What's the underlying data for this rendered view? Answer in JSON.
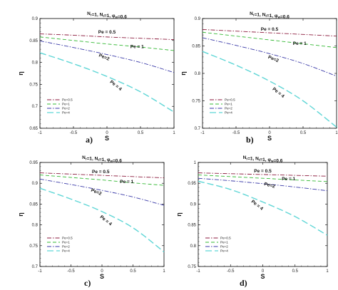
{
  "chart_data": [
    {
      "id": "a",
      "type": "line",
      "title": "N_r=1, N_t=1, φ_w=0.6",
      "xlabel": "S",
      "ylabel": "η",
      "xlim": [
        -1,
        1
      ],
      "ylim": [
        0.65,
        0.9
      ],
      "xticks": [
        "-1",
        "-0.5",
        "0",
        "0.5",
        "1"
      ],
      "yticks": [
        "0.65",
        "0.7",
        "0.75",
        "0.8",
        "0.85",
        "0.9"
      ],
      "legend_placement": "lower-left",
      "panel_label": "a)",
      "series": [
        {
          "name": "Pe=0.5",
          "color": "#8b1a3c",
          "dash": "dashdot",
          "x": [
            -1,
            -0.5,
            0,
            0.5,
            1
          ],
          "y": [
            0.865,
            0.862,
            0.858,
            0.855,
            0.852
          ]
        },
        {
          "name": "Pe=1",
          "color": "#33b833",
          "dash": "dash",
          "x": [
            -1,
            -0.5,
            0,
            0.5,
            1
          ],
          "y": [
            0.858,
            0.85,
            0.842,
            0.835,
            0.827
          ]
        },
        {
          "name": "Pe=2",
          "color": "#3a3aa8",
          "dash": "dashdot",
          "x": [
            -1,
            -0.5,
            0,
            0.5,
            1
          ],
          "y": [
            0.849,
            0.834,
            0.818,
            0.8,
            0.777
          ]
        },
        {
          "name": "Pe=4",
          "color": "#5fd6d6",
          "dash": "longdash",
          "x": [
            -1,
            -0.5,
            0,
            0.5,
            1
          ],
          "y": [
            0.822,
            0.797,
            0.768,
            0.733,
            0.687
          ]
        }
      ],
      "annotations": [
        {
          "text": "Pe = 0.5",
          "x": 0.0,
          "y": 0.866,
          "rotate": 0
        },
        {
          "text": "Pe = 1",
          "x": 0.45,
          "y": 0.833,
          "rotate": 0
        },
        {
          "text": "Pe=2",
          "x": -0.05,
          "y": 0.809,
          "rotate": 22
        },
        {
          "text": "Pe = 4",
          "x": 0.12,
          "y": 0.745,
          "rotate": 38
        }
      ]
    },
    {
      "id": "b",
      "type": "line",
      "title": "N_r=1, N_t=1, φ_w=0.6",
      "xlabel": "S",
      "ylabel": "η",
      "xlim": [
        -1,
        1
      ],
      "ylim": [
        0.7,
        0.9
      ],
      "xticks": [
        "-1",
        "-0.5",
        "0",
        "0.5",
        "1"
      ],
      "yticks": [
        "0.7",
        "0.75",
        "0.8",
        "0.85",
        "0.9"
      ],
      "legend_placement": "lower-left",
      "panel_label": "b)",
      "series": [
        {
          "name": "Pe=0.5",
          "color": "#8b1a3c",
          "dash": "dashdot",
          "x": [
            -1,
            -0.5,
            0,
            0.5,
            1
          ],
          "y": [
            0.88,
            0.877,
            0.874,
            0.871,
            0.868
          ]
        },
        {
          "name": "Pe=1",
          "color": "#33b833",
          "dash": "dash",
          "x": [
            -1,
            -0.5,
            0,
            0.5,
            1
          ],
          "y": [
            0.875,
            0.868,
            0.861,
            0.854,
            0.847
          ]
        },
        {
          "name": "Pe=2",
          "color": "#3a3aa8",
          "dash": "dashdot",
          "x": [
            -1,
            -0.5,
            0,
            0.5,
            1
          ],
          "y": [
            0.865,
            0.851,
            0.836,
            0.818,
            0.795
          ]
        },
        {
          "name": "Pe=4",
          "color": "#5fd6d6",
          "dash": "longdash",
          "x": [
            -1,
            -0.5,
            0,
            0.5,
            1
          ],
          "y": [
            0.84,
            0.815,
            0.786,
            0.75,
            0.702
          ]
        }
      ],
      "annotations": [
        {
          "text": "Pe = 0.5",
          "x": 0.0,
          "y": 0.878,
          "rotate": 0
        },
        {
          "text": "Pe = 1",
          "x": 0.45,
          "y": 0.852,
          "rotate": 0
        },
        {
          "text": "Pe=2",
          "x": 0.05,
          "y": 0.824,
          "rotate": 22
        },
        {
          "text": "Pe = 4",
          "x": 0.12,
          "y": 0.763,
          "rotate": 38
        }
      ]
    },
    {
      "id": "c",
      "type": "line",
      "title": "N_r=1, N_t=1, φ_w=0.6",
      "xlabel": "S",
      "ylabel": "η",
      "xlim": [
        -1,
        1
      ],
      "ylim": [
        0.7,
        0.95
      ],
      "xticks": [
        "-1",
        "-0.5",
        "0",
        "0.5",
        "1"
      ],
      "yticks": [
        "0.7",
        "0.75",
        "0.8",
        "0.85",
        "0.9",
        "0.95"
      ],
      "legend_placement": "lower-left",
      "panel_label": "c)",
      "series": [
        {
          "name": "Pe=0.5",
          "color": "#8b1a3c",
          "dash": "dashdot",
          "x": [
            -1,
            -0.5,
            0,
            0.5,
            1
          ],
          "y": [
            0.925,
            0.922,
            0.919,
            0.916,
            0.913
          ]
        },
        {
          "name": "Pe=1",
          "color": "#33b833",
          "dash": "dash",
          "x": [
            -1,
            -0.5,
            0,
            0.5,
            1
          ],
          "y": [
            0.92,
            0.914,
            0.908,
            0.901,
            0.895
          ]
        },
        {
          "name": "Pe=2",
          "color": "#3a3aa8",
          "dash": "dashdot",
          "x": [
            -1,
            -0.5,
            0,
            0.5,
            1
          ],
          "y": [
            0.91,
            0.897,
            0.883,
            0.867,
            0.847
          ]
        },
        {
          "name": "Pe=4",
          "color": "#5fd6d6",
          "dash": "longdash",
          "x": [
            -1,
            -0.5,
            0,
            0.5,
            1
          ],
          "y": [
            0.888,
            0.862,
            0.832,
            0.793,
            0.735
          ]
        }
      ],
      "annotations": [
        {
          "text": "Pe = 0.5",
          "x": -0.02,
          "y": 0.924,
          "rotate": 0
        },
        {
          "text": "Pe = 1",
          "x": 0.4,
          "y": 0.9,
          "rotate": 0
        },
        {
          "text": "Pe=2",
          "x": -0.1,
          "y": 0.876,
          "rotate": 22
        },
        {
          "text": "Pe = 4",
          "x": 0.05,
          "y": 0.808,
          "rotate": 38
        }
      ]
    },
    {
      "id": "d",
      "type": "line",
      "title": "N_r=1, N_t=1, φ_w=0.6",
      "xlabel": "S",
      "ylabel": "η",
      "xlim": [
        -1,
        1
      ],
      "ylim": [
        0.75,
        1
      ],
      "xticks": [
        "-1",
        "-0.5",
        "0",
        "0.5",
        "1"
      ],
      "yticks": [
        "0.75",
        "0.8",
        "0.85",
        "0.9",
        "0.95",
        "1"
      ],
      "legend_placement": "lower-left",
      "panel_label": "d)",
      "series": [
        {
          "name": "Pe=0.5",
          "color": "#8b1a3c",
          "dash": "dashdot",
          "x": [
            -1,
            -0.5,
            0,
            0.5,
            1
          ],
          "y": [
            0.975,
            0.973,
            0.971,
            0.969,
            0.967
          ]
        },
        {
          "name": "Pe=1",
          "color": "#33b833",
          "dash": "dash",
          "x": [
            -1,
            -0.5,
            0,
            0.5,
            1
          ],
          "y": [
            0.97,
            0.966,
            0.962,
            0.958,
            0.954
          ]
        },
        {
          "name": "Pe=2",
          "color": "#3a3aa8",
          "dash": "dashdot",
          "x": [
            -1,
            -0.5,
            0,
            0.5,
            1
          ],
          "y": [
            0.962,
            0.956,
            0.949,
            0.941,
            0.932
          ]
        },
        {
          "name": "Pe=4",
          "color": "#5fd6d6",
          "dash": "longdash",
          "x": [
            -1,
            -0.5,
            0,
            0.5,
            1
          ],
          "y": [
            0.955,
            0.935,
            0.905,
            0.87,
            0.825
          ]
        }
      ],
      "annotations": [
        {
          "text": "Pe = 0.5",
          "x": 0.0,
          "y": 0.976,
          "rotate": 0
        },
        {
          "text": "Pe = 1",
          "x": 0.4,
          "y": 0.957,
          "rotate": 0
        },
        {
          "text": "Pe=2",
          "x": 0.1,
          "y": 0.942,
          "rotate": 15
        },
        {
          "text": "Pe = 4",
          "x": -0.1,
          "y": 0.895,
          "rotate": 38
        }
      ]
    }
  ]
}
